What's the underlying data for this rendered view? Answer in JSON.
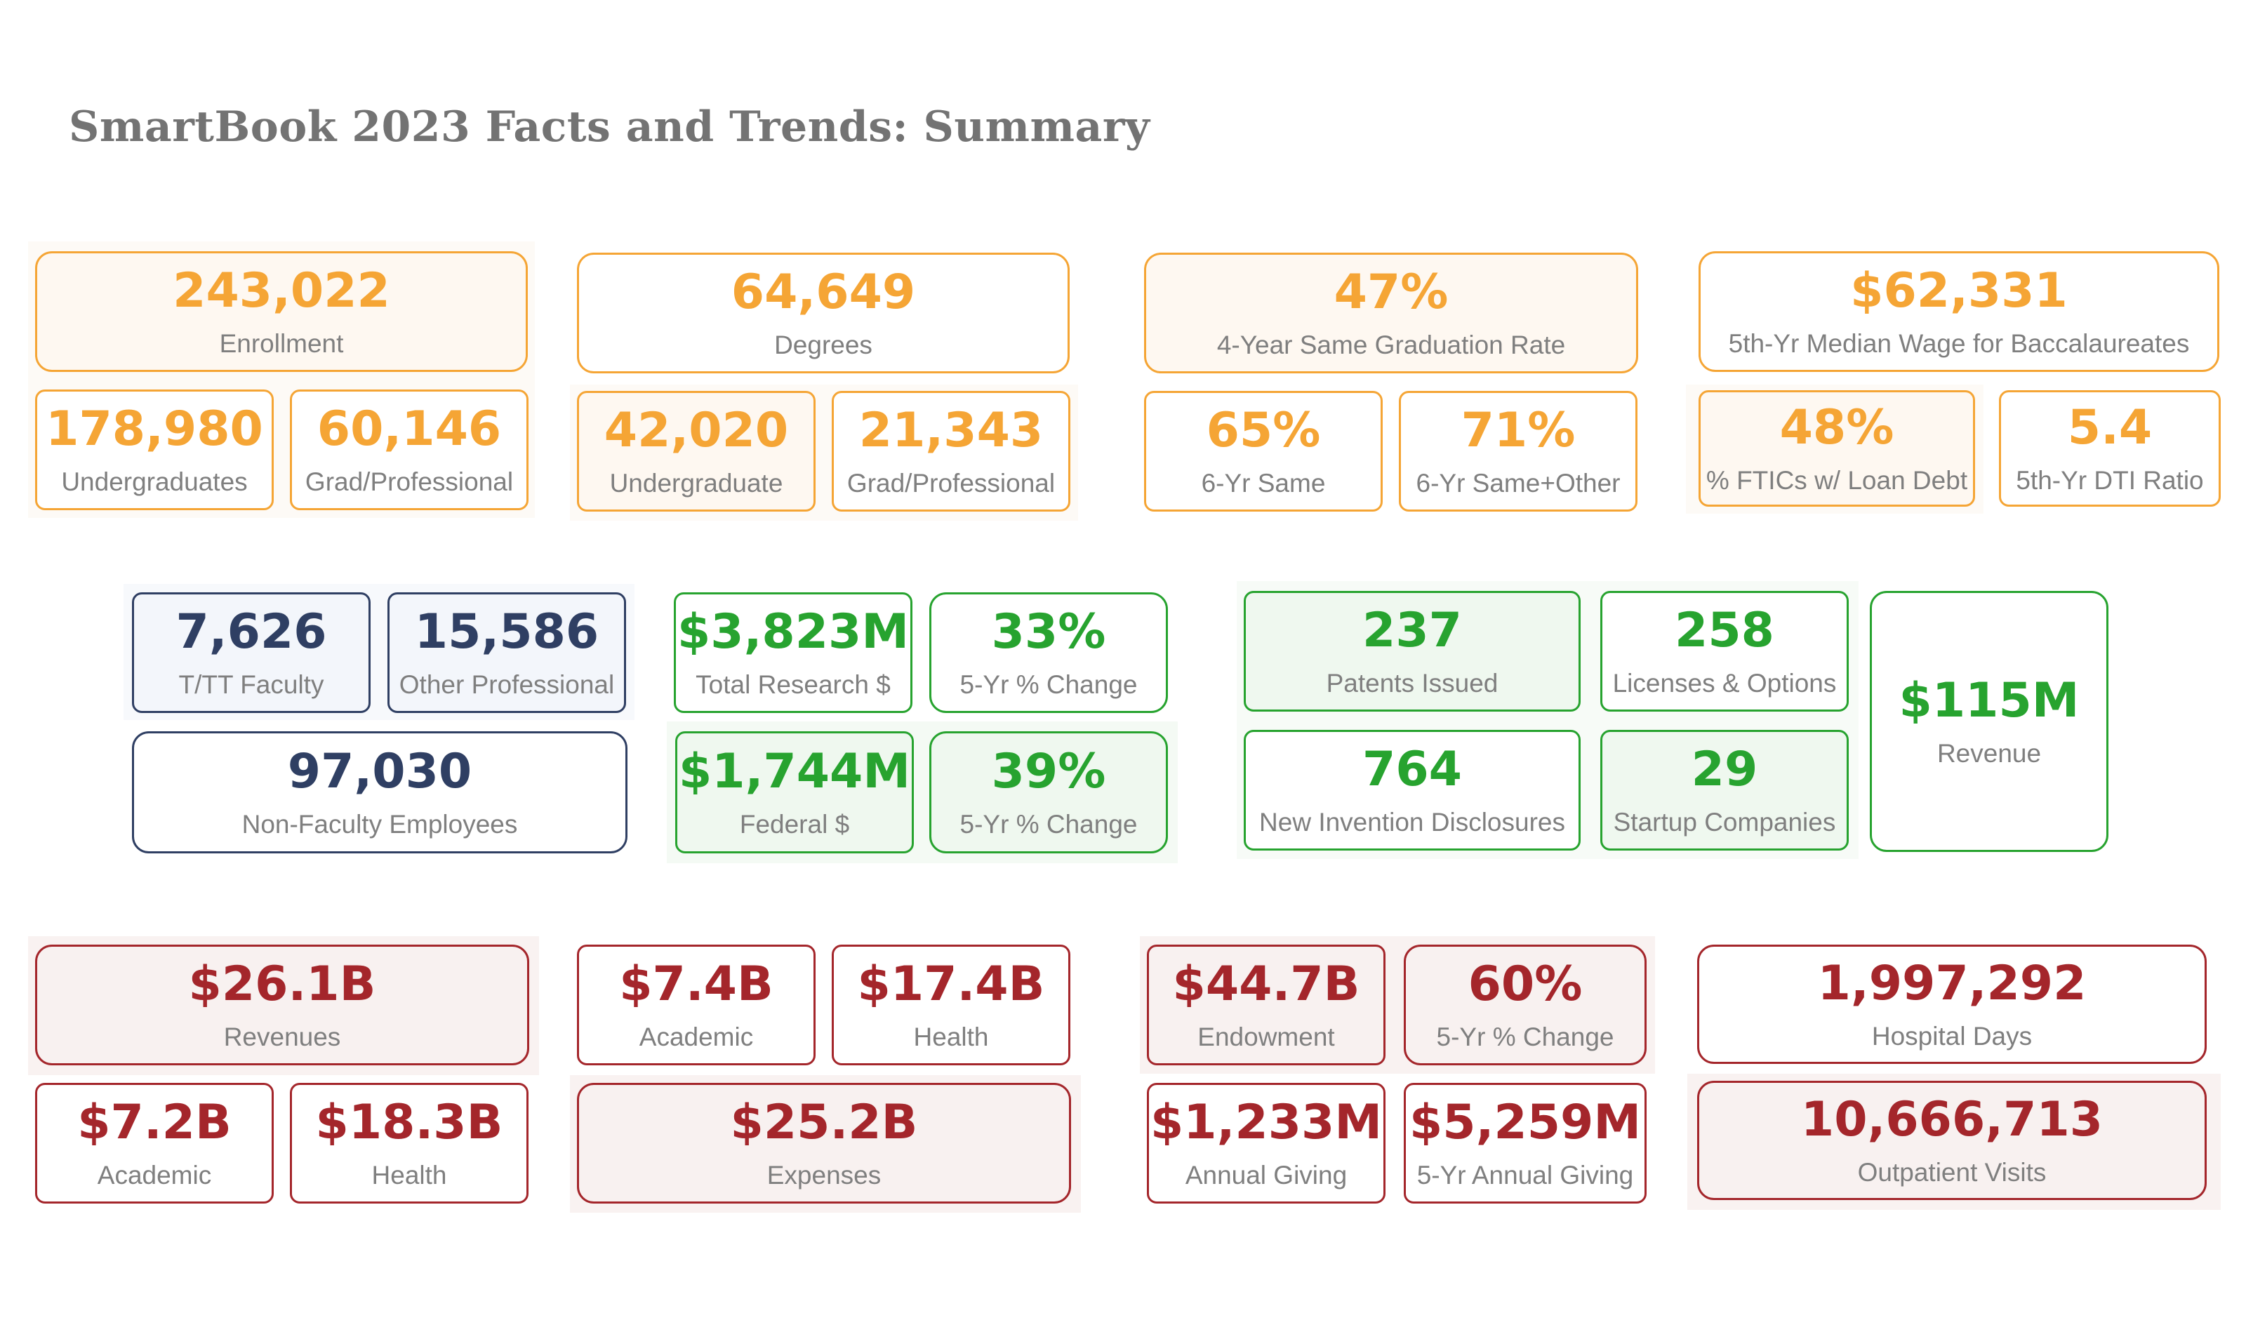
{
  "title": "SmartBook 2023 Facts and Trends: Summary",
  "colors": {
    "students": "#f5a535",
    "people": "#2f3f63",
    "research": "#27a32f",
    "finance": "#a4262b",
    "label": "#7f7f7f",
    "title": "#737373"
  },
  "enrollment": {
    "total": {
      "value": "243,022",
      "label": "Enrollment"
    },
    "undergrad": {
      "value": "178,980",
      "label": "Undergraduates"
    },
    "grad": {
      "value": "60,146",
      "label": "Grad/Professional"
    }
  },
  "degrees": {
    "total": {
      "value": "64,649",
      "label": "Degrees"
    },
    "undergrad": {
      "value": "42,020",
      "label": "Undergraduate"
    },
    "grad": {
      "value": "21,343",
      "label": "Grad/Professional"
    }
  },
  "graduation": {
    "four_year": {
      "value": "47%",
      "label": "4-Year Same Graduation Rate"
    },
    "six_same": {
      "value": "65%",
      "label": "6-Yr Same"
    },
    "six_other": {
      "value": "71%",
      "label": "6-Yr Same+Other"
    }
  },
  "wages": {
    "median": {
      "value": "$62,331",
      "label": "5th-Yr Median Wage for Baccalaureates"
    },
    "loan": {
      "value": "48%",
      "label": "% FTICs w/ Loan Debt"
    },
    "dti": {
      "value": "5.4",
      "label": "5th-Yr DTI Ratio"
    }
  },
  "employees": {
    "tt": {
      "value": "7,626",
      "label": "T/TT Faculty"
    },
    "other": {
      "value": "15,586",
      "label": "Other Professional"
    },
    "nonfaculty": {
      "value": "97,030",
      "label": "Non-Faculty Employees"
    }
  },
  "research": {
    "total": {
      "value": "$3,823M",
      "label": "Total Research $"
    },
    "total_change": {
      "value": "33%",
      "label": "5-Yr % Change"
    },
    "federal": {
      "value": "$1,744M",
      "label": "Federal $"
    },
    "federal_change": {
      "value": "39%",
      "label": "5-Yr % Change"
    }
  },
  "tech": {
    "patents": {
      "value": "237",
      "label": "Patents Issued"
    },
    "licenses": {
      "value": "258",
      "label": "Licenses & Options"
    },
    "revenue": {
      "value": "$115M",
      "label": "Revenue"
    },
    "disclosures": {
      "value": "764",
      "label": "New Invention Disclosures"
    },
    "startups": {
      "value": "29",
      "label": "Startup Companies"
    }
  },
  "revenues": {
    "total": {
      "value": "$26.1B",
      "label": "Revenues"
    },
    "academic": {
      "value": "$7.2B",
      "label": "Academic"
    },
    "health": {
      "value": "$18.3B",
      "label": "Health"
    }
  },
  "expenses": {
    "academic": {
      "value": "$7.4B",
      "label": "Academic"
    },
    "health": {
      "value": "$17.4B",
      "label": "Health"
    },
    "total": {
      "value": "$25.2B",
      "label": "Expenses"
    }
  },
  "endowment": {
    "total": {
      "value": "$44.7B",
      "label": "Endowment"
    },
    "change": {
      "value": "60%",
      "label": "5-Yr % Change"
    },
    "annual": {
      "value": "$1,233M",
      "label": "Annual Giving"
    },
    "five_yr": {
      "value": "$5,259M",
      "label": "5-Yr Annual Giving"
    }
  },
  "hospital": {
    "days": {
      "value": "1,997,292",
      "label": "Hospital Days"
    },
    "outpatient": {
      "value": "10,666,713",
      "label": "Outpatient Visits"
    }
  }
}
